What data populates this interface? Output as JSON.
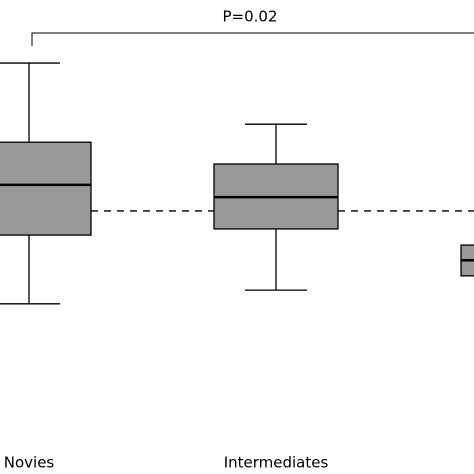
{
  "chart_data": {
    "type": "box",
    "categories": [
      "Novies",
      "Intermediates",
      null
    ],
    "whisker_high": [
      86.7,
      73.8,
      null
    ],
    "q3": [
      70,
      65.4,
      48.3
    ],
    "median": [
      61,
      58.4,
      45.1
    ],
    "q1": [
      50.4,
      51.7,
      41.8
    ],
    "whisker_low": [
      35.9,
      38.8,
      null
    ],
    "color": "#999999",
    "reference_line": 55.5,
    "annotation": "P=0.02",
    "ylim": [
      0,
      100
    ]
  }
}
